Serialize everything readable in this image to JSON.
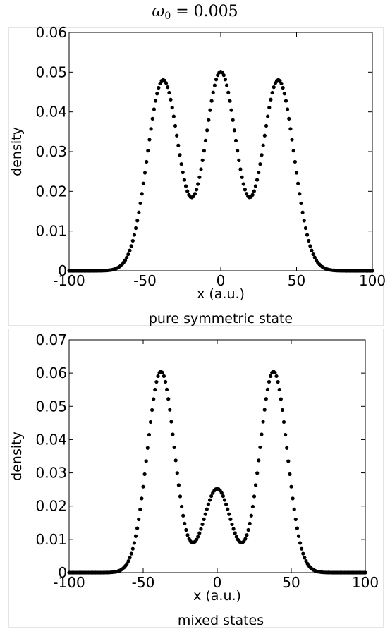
{
  "title": {
    "symbol": "ω",
    "subscript": "0",
    "equals": " = ",
    "value": "0.005"
  },
  "chart_data": [
    {
      "type": "scatter",
      "caption": "pure symmetric state",
      "xlabel": "x (a.u.)",
      "ylabel": "density",
      "xlim": [
        -100,
        100
      ],
      "ylim": [
        0,
        0.06
      ],
      "xticks": [
        -100,
        -50,
        0,
        50,
        100
      ],
      "xtick_labels": [
        "-100",
        "-50",
        "0",
        "50",
        "100"
      ],
      "yticks": [
        0,
        0.01,
        0.02,
        0.03,
        0.04,
        0.05,
        0.06
      ],
      "ytick_labels": [
        "0",
        "0.01",
        "0.02",
        "0.03",
        "0.04",
        "0.05",
        "0.06"
      ],
      "grid": false,
      "marker_color": "#000000",
      "x_step": 1,
      "components": [
        {
          "center": -38,
          "amplitude": 0.048,
          "width": 10.4
        },
        {
          "center": 0,
          "amplitude": 0.05,
          "width": 10.4
        },
        {
          "center": 38,
          "amplitude": 0.048,
          "width": 10.4
        }
      ]
    },
    {
      "type": "scatter",
      "caption": "mixed states",
      "xlabel": "x (a.u.)",
      "ylabel": "density",
      "xlim": [
        -100,
        100
      ],
      "ylim": [
        0,
        0.07
      ],
      "xticks": [
        -100,
        -50,
        0,
        50,
        100
      ],
      "xtick_labels": [
        "-100",
        "-50",
        "0",
        "50",
        "100"
      ],
      "yticks": [
        0,
        0.01,
        0.02,
        0.03,
        0.04,
        0.05,
        0.06,
        0.07
      ],
      "ytick_labels": [
        "0",
        "0.01",
        "0.02",
        "0.03",
        "0.04",
        "0.05",
        "0.06",
        "0.07"
      ],
      "grid": false,
      "marker_color": "#000000",
      "x_step": 1,
      "components": [
        {
          "center": -38,
          "amplitude": 0.0605,
          "width": 9.2
        },
        {
          "center": 0,
          "amplitude": 0.0252,
          "width": 9.2
        },
        {
          "center": 38,
          "amplitude": 0.0605,
          "width": 9.2
        }
      ]
    }
  ]
}
